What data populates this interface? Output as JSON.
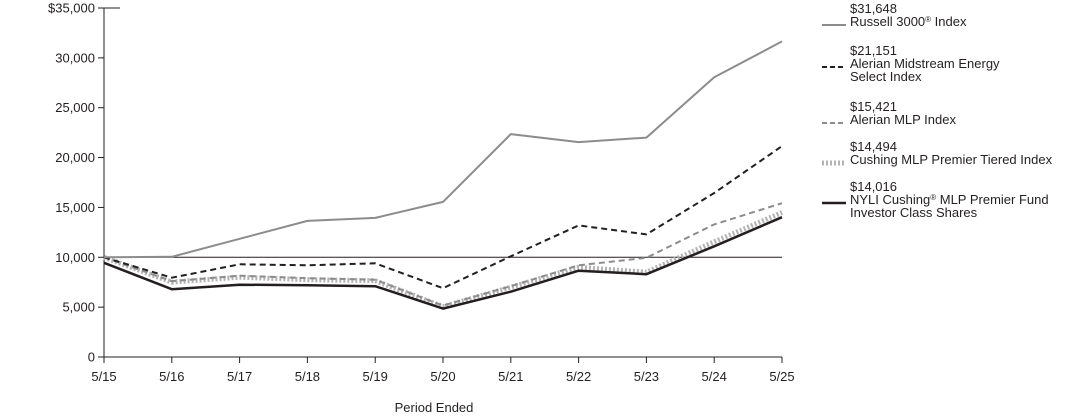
{
  "chart_data": {
    "type": "line",
    "title": "",
    "xlabel": "Period Ended",
    "ylabel": "",
    "categories": [
      "5/15",
      "5/16",
      "5/17",
      "5/18",
      "5/19",
      "5/20",
      "5/21",
      "5/22",
      "5/23",
      "5/24",
      "5/25"
    ],
    "ylim": [
      0,
      35000
    ],
    "yticks": [
      0,
      5000,
      10000,
      15000,
      20000,
      25000,
      30000,
      35000
    ],
    "ytick_labels": [
      "0",
      "5,000",
      "10,000",
      "15,000",
      "20,000",
      "25,000",
      "30,000",
      "$35,000"
    ],
    "reference_line": 10000,
    "grid": false,
    "legend_position": "right",
    "series": [
      {
        "name": "Russell 3000® Index",
        "name_parts": [
          "Russell 3000",
          "®",
          " Index"
        ],
        "end_label": "$31,648",
        "color": "#8c8c8c",
        "style": "solid",
        "values": [
          10000,
          10050,
          11850,
          13650,
          13950,
          15550,
          22350,
          21550,
          22000,
          28050,
          31648
        ]
      },
      {
        "name": "Alerian Midstream Energy Select Index",
        "name_lines": [
          "Alerian Midstream Energy",
          "Select Index"
        ],
        "end_label": "$21,151",
        "color": "#231f20",
        "style": "dash",
        "values": [
          10000,
          7950,
          9300,
          9200,
          9400,
          6900,
          10100,
          13200,
          12300,
          16450,
          21151
        ]
      },
      {
        "name": "Alerian MLP Index",
        "end_label": "$15,421",
        "color": "#8c8c8c",
        "style": "dash",
        "values": [
          10000,
          7600,
          8150,
          7900,
          7750,
          5150,
          7100,
          9200,
          9950,
          13300,
          15421
        ]
      },
      {
        "name": "Cushing MLP Premier Tiered Index",
        "end_label": "$14,494",
        "color": "#b3b3b3",
        "style": "dotted-thick",
        "values": [
          10000,
          7500,
          8000,
          7750,
          7650,
          5050,
          7000,
          9000,
          8500,
          11550,
          14494
        ]
      },
      {
        "name": "NYLI Cushing® MLP Premier Fund Investor Class Shares",
        "name_parts": [
          "NYLI Cushing",
          "®",
          " MLP Premier Fund"
        ],
        "name_line2": "Investor Class Shares",
        "end_label": "$14,016",
        "color": "#231f20",
        "style": "solid",
        "values": [
          9450,
          6800,
          7250,
          7200,
          7100,
          4850,
          6550,
          8650,
          8300,
          11100,
          14016
        ]
      }
    ]
  }
}
